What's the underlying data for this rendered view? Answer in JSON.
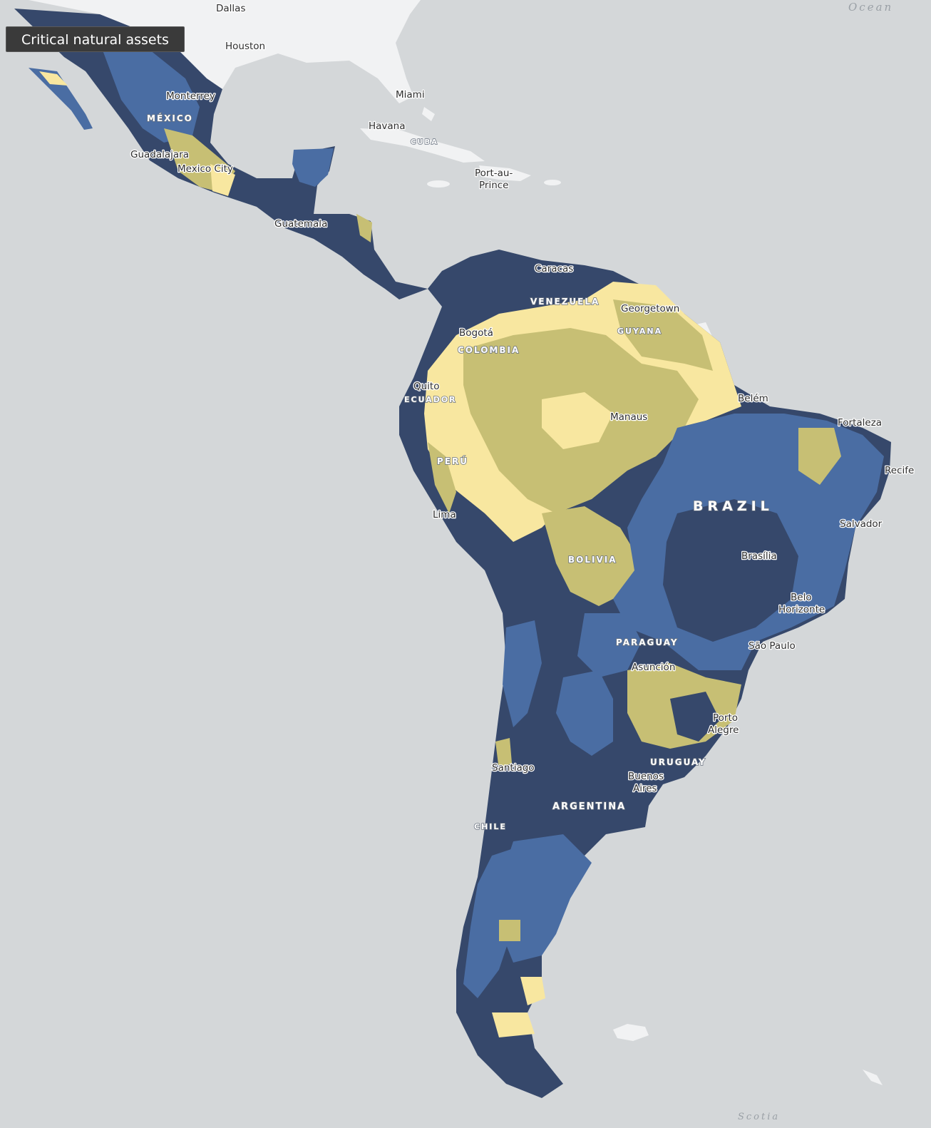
{
  "map": {
    "layer_title": "Critical natural assets",
    "colors": {
      "water": "#d4d7d9",
      "land_outside": "#f1f2f3",
      "darkest_blue": "#36486b",
      "mid_blue": "#4a6da3",
      "olive_yellow": "#c7bf74",
      "pale_yellow": "#f8e7a0"
    },
    "cities": {
      "dallas": "Dallas",
      "houston": "Houston",
      "monterrey": "Monterrey",
      "miami": "Miami",
      "havana": "Havana",
      "guadalajara": "Guadalajara",
      "mexico_city": "Mexico City",
      "port_au_prince_1": "Port-au-",
      "port_au_prince_2": "Prince",
      "guatemala": "Guatemala",
      "caracas": "Caracas",
      "georgetown": "Georgetown",
      "bogota": "Bogotá",
      "quito": "Quito",
      "belem": "Belém",
      "manaus": "Manaus",
      "fortaleza": "Fortaleza",
      "recife": "Recife",
      "lima": "Lima",
      "salvador": "Salvador",
      "brasilia": "Brasília",
      "belo_horizonte_1": "Belo",
      "belo_horizonte_2": "Horizonte",
      "sao_paulo": "São Paulo",
      "asuncion": "Asunción",
      "porto_alegre_1": "Porto",
      "porto_alegre_2": "Alegre",
      "santiago": "Santiago",
      "buenos_aires_1": "Buenos",
      "buenos_aires_2": "Aires"
    },
    "countries": {
      "mexico": "MÉXICO",
      "cuba": "CUBA",
      "venezuela": "VENEZUELA",
      "guyana": "GUYANA",
      "colombia": "COLOMBIA",
      "ecuador": "ECUADOR",
      "peru": "PERÚ",
      "brazil": "BRAZIL",
      "bolivia": "BOLIVIA",
      "paraguay": "PARAGUAY",
      "uruguay": "URUGUAY",
      "argentina": "ARGENTINA",
      "chile": "CHILE"
    },
    "water_labels": {
      "ocean": "Ocean",
      "scotia": "Scotia"
    }
  }
}
